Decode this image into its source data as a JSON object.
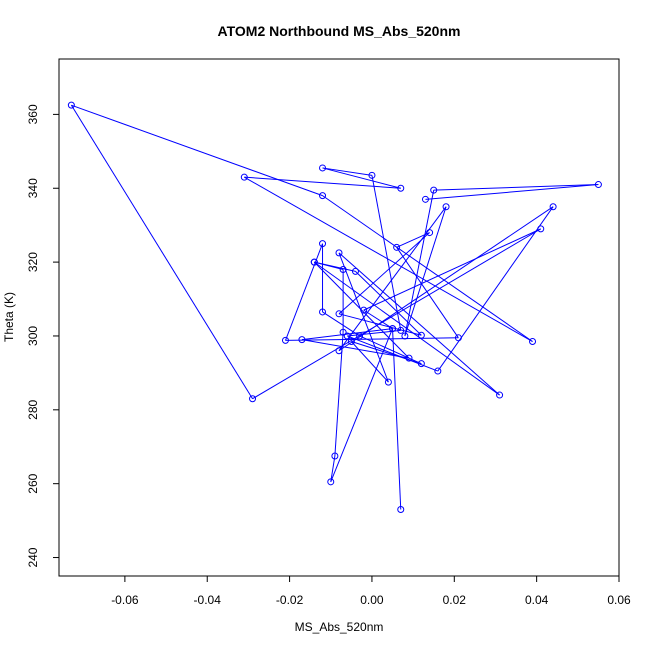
{
  "chart_data": {
    "type": "line",
    "title": "ATOM2 Northbound MS_Abs_520nm",
    "xlabel": "MS_Abs_520nm",
    "ylabel": "Theta (K)",
    "xlim": [
      -0.076,
      0.06
    ],
    "ylim": [
      235,
      375
    ],
    "xticks": [
      "-0.06",
      "-0.04",
      "-0.02",
      "0.00",
      "0.02",
      "0.04",
      "0.06"
    ],
    "xtick_values": [
      -0.06,
      -0.04,
      -0.02,
      0.0,
      0.02,
      0.04,
      0.06
    ],
    "yticks": [
      "240",
      "260",
      "280",
      "300",
      "320",
      "340",
      "360"
    ],
    "ytick_values": [
      240,
      260,
      280,
      300,
      320,
      340,
      360
    ],
    "line_color": "#0000ff",
    "markers": "open-circle",
    "series": [
      {
        "x": [
          0.007,
          0.005,
          -0.01,
          -0.009,
          -0.007,
          -0.007,
          -0.014,
          -0.004,
          0.012,
          -0.008,
          0.014,
          0.006,
          0.021,
          -0.021,
          -0.012,
          -0.012,
          -0.003,
          0.012,
          -0.005,
          0.004,
          -0.008,
          0.031,
          -0.014,
          0.009,
          -0.017,
          0.005,
          -0.002,
          0.041,
          -0.029,
          -0.073,
          -0.012,
          0.039,
          -0.031,
          0.007,
          -0.012,
          0.0,
          0.007,
          -0.006,
          0.016,
          0.044,
          -0.008,
          0.018,
          0.008,
          0.015,
          0.055,
          0.013
        ],
        "y": [
          253,
          302,
          260.5,
          267.5,
          301,
          318,
          320,
          317.5,
          300.2,
          306,
          328,
          324,
          299.5,
          298.8,
          325,
          306.5,
          300,
          292.5,
          298.5,
          287.5,
          322.5,
          284,
          320,
          294,
          299,
          302,
          307,
          329,
          283,
          362.5,
          338,
          298.5,
          343,
          340,
          345.5,
          343.5,
          301.5,
          300,
          290.5,
          335,
          296,
          335,
          300,
          339.5,
          341,
          337
        ]
      }
    ]
  }
}
